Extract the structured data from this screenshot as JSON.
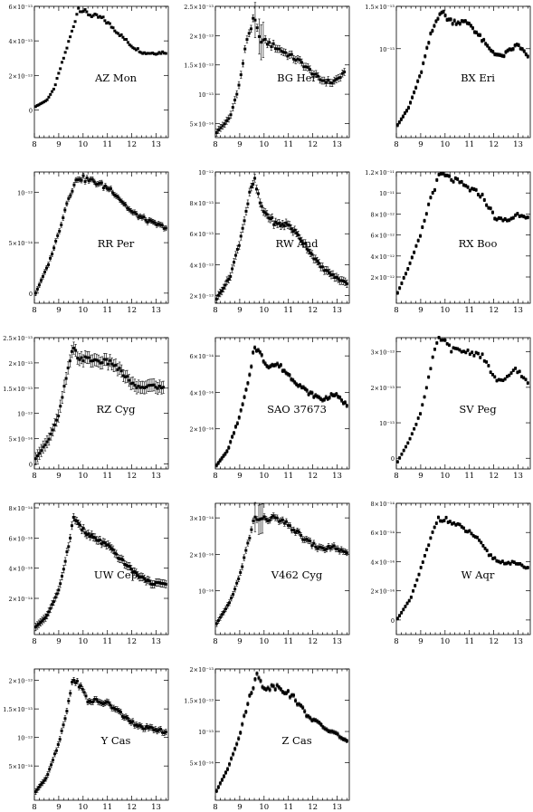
{
  "chart_data": [
    {
      "type": "scatter",
      "title": "AZ Mon",
      "xlim": [
        8,
        13.5
      ],
      "ylim": [
        -1.6e-13,
        6e-13
      ],
      "xticks": [
        8,
        9,
        10,
        11,
        12,
        13
      ],
      "yticks": [
        {
          "v": 0,
          "label": "0"
        },
        {
          "v": 2e-13,
          "label": "2×10⁻¹³"
        },
        {
          "v": 4e-13,
          "label": "4×10⁻¹³"
        },
        {
          "v": 6e-13,
          "label": "6×10⁻¹³"
        }
      ],
      "nodes": [
        [
          8.05,
          0.2
        ],
        [
          8.5,
          0.55
        ],
        [
          8.8,
          1.2
        ],
        [
          9.2,
          3.0
        ],
        [
          9.6,
          4.8
        ],
        [
          9.8,
          5.9
        ],
        [
          10.3,
          5.5
        ],
        [
          10.8,
          5.3
        ],
        [
          11.2,
          4.8
        ],
        [
          12.0,
          3.7
        ],
        [
          12.5,
          3.3
        ],
        [
          13.0,
          3.3
        ],
        [
          13.4,
          3.35
        ]
      ],
      "scale": 1e-13,
      "n": 80,
      "err": 0.04,
      "big_err_x": []
    },
    {
      "type": "scatter",
      "title": "BG Her",
      "xlim": [
        8,
        13.5
      ],
      "ylim": [
        2.6e-14,
        2.5e-13
      ],
      "xticks": [
        8,
        9,
        10,
        11,
        12,
        13
      ],
      "yticks": [
        {
          "v": 5e-14,
          "label": "5×10⁻¹⁴"
        },
        {
          "v": 1e-13,
          "label": "10⁻¹³"
        },
        {
          "v": 1.5e-13,
          "label": "1.5×10⁻¹³"
        },
        {
          "v": 2e-13,
          "label": "2×10⁻¹³"
        },
        {
          "v": 2.5e-13,
          "label": "2.5×10⁻¹³"
        }
      ],
      "nodes": [
        [
          8.05,
          0.35
        ],
        [
          8.6,
          0.6
        ],
        [
          9.0,
          1.2
        ],
        [
          9.3,
          1.95
        ],
        [
          9.6,
          2.3
        ],
        [
          9.8,
          1.95
        ],
        [
          10.5,
          1.8
        ],
        [
          11.5,
          1.55
        ],
        [
          12.3,
          1.25
        ],
        [
          12.8,
          1.2
        ],
        [
          13.3,
          1.35
        ]
      ],
      "scale": 1e-13,
      "n": 64,
      "err": 0.06,
      "big_err_x": [
        9.6,
        9.8,
        9.9,
        10.0
      ]
    },
    {
      "type": "scatter",
      "title": "BX Eri",
      "xlim": [
        8,
        13.5
      ],
      "ylim": [
        -5e-15,
        1.5e-13
      ],
      "xticks": [
        8,
        9,
        10,
        11,
        12,
        13
      ],
      "yticks": [
        {
          "v": 1e-13,
          "label": "10⁻¹³"
        },
        {
          "v": 1.5e-13,
          "label": "1.5×10⁻¹³"
        }
      ],
      "nodes": [
        [
          8.05,
          0.1
        ],
        [
          8.5,
          0.3
        ],
        [
          9.0,
          0.7
        ],
        [
          9.4,
          1.15
        ],
        [
          9.8,
          1.45
        ],
        [
          10.2,
          1.33
        ],
        [
          11.0,
          1.3
        ],
        [
          11.8,
          1.0
        ],
        [
          12.3,
          0.9
        ],
        [
          13.0,
          1.05
        ],
        [
          13.4,
          0.9
        ]
      ],
      "scale": 1e-13,
      "n": 72,
      "err": 0.02,
      "big_err_x": []
    },
    {
      "type": "scatter",
      "title": "RR Per",
      "xlim": [
        8,
        13.5
      ],
      "ylim": [
        -1e-14,
        1.2e-13
      ],
      "xticks": [
        8,
        9,
        10,
        11,
        12,
        13
      ],
      "yticks": [
        {
          "v": 0,
          "label": "0"
        },
        {
          "v": 5e-14,
          "label": "5×10⁻¹⁴"
        },
        {
          "v": 1e-13,
          "label": "10⁻¹³"
        }
      ],
      "nodes": [
        [
          8.05,
          0.0
        ],
        [
          8.6,
          0.3
        ],
        [
          9.0,
          0.6
        ],
        [
          9.4,
          0.95
        ],
        [
          9.8,
          1.15
        ],
        [
          10.5,
          1.1
        ],
        [
          11.2,
          1.02
        ],
        [
          12.0,
          0.8
        ],
        [
          12.8,
          0.7
        ],
        [
          13.4,
          0.65
        ]
      ],
      "scale": 1e-13,
      "n": 72,
      "err": 0.025,
      "big_err_x": []
    },
    {
      "type": "scatter",
      "title": "RW And",
      "xlim": [
        8,
        13.5
      ],
      "ylim": [
        1.5e-13,
        1e-12
      ],
      "xticks": [
        8,
        9,
        10,
        11,
        12,
        13
      ],
      "yticks": [
        {
          "v": 2e-13,
          "label": "2×10⁻¹³"
        },
        {
          "v": 4e-13,
          "label": "4×10⁻¹³"
        },
        {
          "v": 6e-13,
          "label": "6×10⁻¹³"
        },
        {
          "v": 8e-13,
          "label": "8×10⁻¹³"
        },
        {
          "v": 1e-12,
          "label": "10⁻¹²"
        }
      ],
      "nodes": [
        [
          8.05,
          1.8
        ],
        [
          8.6,
          3.2
        ],
        [
          9.0,
          5.5
        ],
        [
          9.4,
          8.5
        ],
        [
          9.6,
          9.5
        ],
        [
          9.9,
          7.6
        ],
        [
          10.5,
          6.6
        ],
        [
          11.0,
          6.6
        ],
        [
          11.6,
          5.5
        ],
        [
          12.3,
          3.9
        ],
        [
          13.0,
          3.1
        ],
        [
          13.4,
          2.8
        ]
      ],
      "scale": 1e-13,
      "n": 76,
      "err": 0.25,
      "big_err_x": []
    },
    {
      "type": "scatter",
      "title": "RX Boo",
      "xlim": [
        8,
        13.5
      ],
      "ylim": [
        -5e-13,
        1.2e-11
      ],
      "xticks": [
        8,
        9,
        10,
        11,
        12,
        13
      ],
      "yticks": [
        {
          "v": 2e-12,
          "label": "2×10⁻¹²"
        },
        {
          "v": 4e-12,
          "label": "4×10⁻¹²"
        },
        {
          "v": 6e-12,
          "label": "6×10⁻¹²"
        },
        {
          "v": 8e-12,
          "label": "8×10⁻¹²"
        },
        {
          "v": 1e-11,
          "label": "10⁻¹¹"
        },
        {
          "v": 1.2e-11,
          "label": "1.2×10⁻¹¹"
        }
      ],
      "nodes": [
        [
          8.05,
          0.5
        ],
        [
          8.6,
          3.5
        ],
        [
          9.0,
          6.0
        ],
        [
          9.4,
          9.5
        ],
        [
          9.8,
          11.8
        ],
        [
          10.4,
          11.2
        ],
        [
          11.0,
          10.4
        ],
        [
          11.5,
          9.8
        ],
        [
          12.1,
          7.5
        ],
        [
          12.6,
          7.4
        ],
        [
          13.0,
          8.0
        ],
        [
          13.4,
          7.8
        ]
      ],
      "scale": 1e-12,
      "n": 64,
      "err": 0.15,
      "big_err_x": []
    },
    {
      "type": "scatter",
      "title": "RZ Cyg",
      "xlim": [
        8,
        13.5
      ],
      "ylim": [
        -1e-14,
        2.5e-13
      ],
      "xticks": [
        8,
        9,
        10,
        11,
        12,
        13
      ],
      "yticks": [
        {
          "v": 0,
          "label": "0"
        },
        {
          "v": 5e-14,
          "label": "5×10⁻¹⁴"
        },
        {
          "v": 1e-13,
          "label": "10⁻¹³"
        },
        {
          "v": 1.5e-13,
          "label": "1.5×10⁻¹³"
        },
        {
          "v": 2e-13,
          "label": "2×10⁻¹³"
        },
        {
          "v": 2.5e-13,
          "label": "2.5×10⁻¹³"
        }
      ],
      "nodes": [
        [
          8.05,
          0.1
        ],
        [
          8.6,
          0.5
        ],
        [
          9.0,
          0.95
        ],
        [
          9.3,
          1.7
        ],
        [
          9.6,
          2.3
        ],
        [
          9.8,
          2.1
        ],
        [
          10.5,
          2.05
        ],
        [
          11.2,
          2.0
        ],
        [
          11.7,
          1.75
        ],
        [
          12.2,
          1.5
        ],
        [
          12.8,
          1.55
        ],
        [
          13.3,
          1.5
        ]
      ],
      "scale": 1e-13,
      "n": 68,
      "err": 0.12,
      "big_err_x": []
    },
    {
      "type": "scatter",
      "title": "SAO 37673",
      "xlim": [
        8,
        13.5
      ],
      "ylim": [
        -2e-15,
        7e-14
      ],
      "xticks": [
        8,
        9,
        10,
        11,
        12,
        13
      ],
      "yticks": [
        {
          "v": 2e-14,
          "label": "2×10⁻¹⁴"
        },
        {
          "v": 4e-14,
          "label": "4×10⁻¹⁴"
        },
        {
          "v": 6e-14,
          "label": "6×10⁻¹⁴"
        }
      ],
      "nodes": [
        [
          8.05,
          0.0
        ],
        [
          8.5,
          0.8
        ],
        [
          9.0,
          2.7
        ],
        [
          9.4,
          4.8
        ],
        [
          9.6,
          6.6
        ],
        [
          9.8,
          6.2
        ],
        [
          10.1,
          5.5
        ],
        [
          10.6,
          5.5
        ],
        [
          11.2,
          4.7
        ],
        [
          11.8,
          4.0
        ],
        [
          12.4,
          3.6
        ],
        [
          12.9,
          3.9
        ],
        [
          13.4,
          3.3
        ]
      ],
      "scale": 1e-14,
      "n": 76,
      "err": 0.1,
      "big_err_x": []
    },
    {
      "type": "scatter",
      "title": "SV Peg",
      "xlim": [
        8,
        13.5
      ],
      "ylim": [
        -3e-14,
        3.4e-13
      ],
      "xticks": [
        8,
        9,
        10,
        11,
        12,
        13
      ],
      "yticks": [
        {
          "v": 0,
          "label": "0"
        },
        {
          "v": 1e-13,
          "label": "10⁻¹³"
        },
        {
          "v": 2e-13,
          "label": "2×10⁻¹³"
        },
        {
          "v": 3e-13,
          "label": "3×10⁻¹³"
        }
      ],
      "nodes": [
        [
          8.05,
          -0.1
        ],
        [
          8.6,
          0.6
        ],
        [
          9.0,
          1.3
        ],
        [
          9.3,
          2.2
        ],
        [
          9.6,
          3.1
        ],
        [
          9.8,
          3.4
        ],
        [
          10.3,
          3.05
        ],
        [
          11.0,
          3.0
        ],
        [
          11.5,
          2.9
        ],
        [
          12.1,
          2.2
        ],
        [
          12.4,
          2.15
        ],
        [
          12.9,
          2.55
        ],
        [
          13.4,
          2.1
        ]
      ],
      "scale": 1e-13,
      "n": 64,
      "err": 0.04,
      "big_err_x": []
    },
    {
      "type": "scatter",
      "title": "UW Cep",
      "xlim": [
        8,
        13.5
      ],
      "ylim": [
        -4e-15,
        8.3e-14
      ],
      "xticks": [
        8,
        9,
        10,
        11,
        12,
        13
      ],
      "yticks": [
        {
          "v": 2e-14,
          "label": "2×10⁻¹⁴"
        },
        {
          "v": 4e-14,
          "label": "4×10⁻¹⁴"
        },
        {
          "v": 6e-14,
          "label": "6×10⁻¹⁴"
        },
        {
          "v": 8e-14,
          "label": "8×10⁻¹⁴"
        }
      ],
      "nodes": [
        [
          8.05,
          0.1
        ],
        [
          8.5,
          0.8
        ],
        [
          9.0,
          2.5
        ],
        [
          9.4,
          5.5
        ],
        [
          9.6,
          7.3
        ],
        [
          9.8,
          7.0
        ],
        [
          10.1,
          6.3
        ],
        [
          11.0,
          5.5
        ],
        [
          11.6,
          4.5
        ],
        [
          12.2,
          3.6
        ],
        [
          12.8,
          3.0
        ],
        [
          13.4,
          3.0
        ]
      ],
      "scale": 1e-14,
      "n": 80,
      "err": 0.25,
      "big_err_x": []
    },
    {
      "type": "scatter",
      "title": "V462 Cyg",
      "xlim": [
        8,
        13.5
      ],
      "ylim": [
        -2e-15,
        3.4e-14
      ],
      "xticks": [
        8,
        9,
        10,
        11,
        12,
        13
      ],
      "yticks": [
        {
          "v": 1e-14,
          "label": "10⁻¹⁴"
        },
        {
          "v": 2e-14,
          "label": "2×10⁻¹⁴"
        },
        {
          "v": 3e-14,
          "label": "3×10⁻¹⁴"
        }
      ],
      "nodes": [
        [
          8.05,
          0.1
        ],
        [
          8.6,
          0.7
        ],
        [
          9.0,
          1.4
        ],
        [
          9.3,
          2.2
        ],
        [
          9.6,
          3.0
        ],
        [
          9.9,
          2.95
        ],
        [
          10.4,
          3.0
        ],
        [
          11.0,
          2.8
        ],
        [
          11.7,
          2.4
        ],
        [
          12.3,
          2.15
        ],
        [
          12.9,
          2.2
        ],
        [
          13.4,
          2.0
        ]
      ],
      "scale": 1e-14,
      "n": 72,
      "err": 0.08,
      "big_err_x": [
        9.6,
        9.75,
        9.85,
        9.95
      ]
    },
    {
      "type": "scatter",
      "title": "W Aqr",
      "xlim": [
        8,
        13.5
      ],
      "ylim": [
        -1e-14,
        8e-14
      ],
      "xticks": [
        8,
        9,
        10,
        11,
        12,
        13
      ],
      "yticks": [
        {
          "v": 0,
          "label": "0"
        },
        {
          "v": 2e-14,
          "label": "2×10⁻¹⁴"
        },
        {
          "v": 4e-14,
          "label": "4×10⁻¹⁴"
        },
        {
          "v": 6e-14,
          "label": "6×10⁻¹⁴"
        },
        {
          "v": 8e-14,
          "label": "8×10⁻¹⁴"
        }
      ],
      "nodes": [
        [
          8.05,
          0.1
        ],
        [
          8.6,
          1.5
        ],
        [
          9.0,
          3.5
        ],
        [
          9.4,
          5.5
        ],
        [
          9.7,
          7.0
        ],
        [
          10.0,
          6.9
        ],
        [
          10.6,
          6.4
        ],
        [
          11.2,
          5.8
        ],
        [
          11.8,
          4.5
        ],
        [
          12.2,
          4.0
        ],
        [
          12.8,
          3.9
        ],
        [
          13.4,
          3.6
        ]
      ],
      "scale": 1e-14,
      "n": 68,
      "err": 0.1,
      "big_err_x": []
    },
    {
      "type": "scatter",
      "title": "Y Cas",
      "xlim": [
        8,
        13.5
      ],
      "ylim": [
        -1e-14,
        2.2e-13
      ],
      "xticks": [
        8,
        9,
        10,
        11,
        12,
        13
      ],
      "yticks": [
        {
          "v": 5e-14,
          "label": "5×10⁻¹⁴"
        },
        {
          "v": 1e-13,
          "label": "10⁻¹³"
        },
        {
          "v": 1.5e-13,
          "label": "1.5×10⁻¹³"
        },
        {
          "v": 2e-13,
          "label": "2×10⁻¹³"
        }
      ],
      "nodes": [
        [
          8.05,
          0.05
        ],
        [
          8.5,
          0.3
        ],
        [
          9.0,
          0.9
        ],
        [
          9.4,
          1.6
        ],
        [
          9.6,
          2.05
        ],
        [
          9.8,
          1.95
        ],
        [
          10.2,
          1.65
        ],
        [
          11.0,
          1.6
        ],
        [
          11.6,
          1.4
        ],
        [
          12.2,
          1.2
        ],
        [
          12.8,
          1.15
        ],
        [
          13.4,
          1.1
        ]
      ],
      "scale": 1e-13,
      "n": 76,
      "err": 0.05,
      "big_err_x": []
    },
    {
      "type": "scatter",
      "title": "Z Cas",
      "xlim": [
        8,
        13.5
      ],
      "ylim": [
        -1e-14,
        2e-13
      ],
      "xticks": [
        8,
        9,
        10,
        11,
        12,
        13
      ],
      "yticks": [
        {
          "v": 5e-14,
          "label": "5×10⁻¹⁴"
        },
        {
          "v": 1e-13,
          "label": "10⁻¹³"
        },
        {
          "v": 1.5e-13,
          "label": "1.5×10⁻¹³"
        },
        {
          "v": 2e-13,
          "label": "2×10⁻¹³"
        }
      ],
      "nodes": [
        [
          8.05,
          0.05
        ],
        [
          8.5,
          0.4
        ],
        [
          9.0,
          0.95
        ],
        [
          9.4,
          1.55
        ],
        [
          9.7,
          1.9
        ],
        [
          10.0,
          1.7
        ],
        [
          10.6,
          1.72
        ],
        [
          11.2,
          1.55
        ],
        [
          11.8,
          1.25
        ],
        [
          12.5,
          1.05
        ],
        [
          13.0,
          0.95
        ],
        [
          13.4,
          0.85
        ]
      ],
      "scale": 1e-13,
      "n": 72,
      "err": 0.03,
      "big_err_x": []
    }
  ]
}
